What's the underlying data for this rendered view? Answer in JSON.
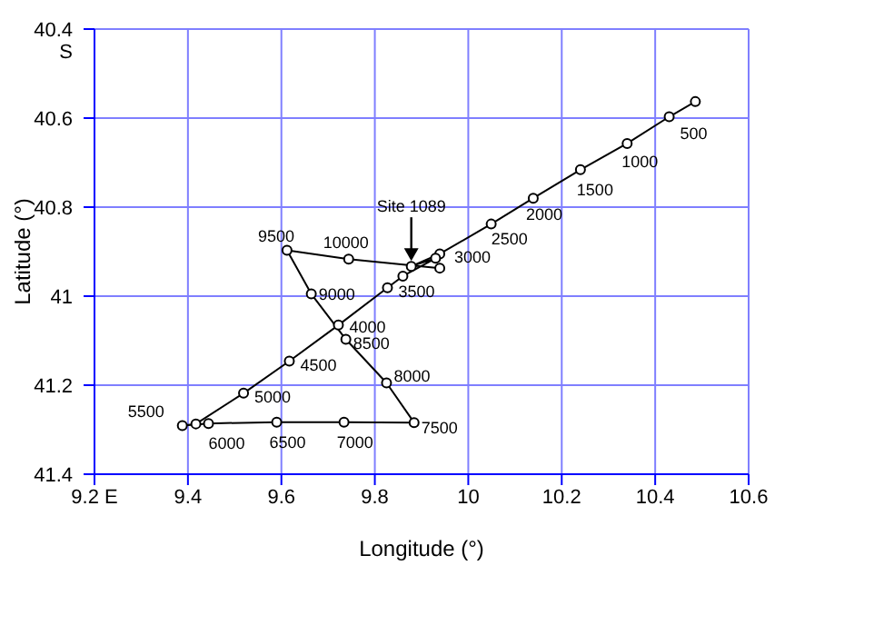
{
  "chart_data": {
    "type": "line",
    "xlabel": "Longitude (°)",
    "ylabel": "Latitude (°)",
    "xlim": [
      9.2,
      10.6
    ],
    "xticks": [
      {
        "value": 9.2,
        "label": "9.2 E"
      },
      9.4,
      9.6,
      9.8,
      10,
      10.2,
      10.4,
      10.6
    ],
    "ylim": [
      41.4,
      40.4
    ],
    "yticks": [
      {
        "value": 40.4,
        "label": "40.4 S"
      },
      40.6,
      40.8,
      41.0,
      41.2,
      41.4
    ],
    "grid": true,
    "marker": "circle",
    "line_style": "solid",
    "series": [
      {
        "color": "#000000",
        "x": [
          10.486,
          10.43,
          10.34,
          10.24,
          10.139,
          10.049,
          9.939,
          9.878,
          9.93,
          9.86,
          9.827,
          9.722,
          9.617,
          9.519,
          9.417,
          9.388,
          9.444,
          9.59,
          9.734,
          9.884,
          9.825,
          9.738,
          9.664,
          9.612,
          9.744,
          9.939
        ],
        "values": [
          40.563,
          40.597,
          40.657,
          40.716,
          40.78,
          40.838,
          40.905,
          40.933,
          40.915,
          40.955,
          40.981,
          41.065,
          41.146,
          41.218,
          41.287,
          41.291,
          41.286,
          41.283,
          41.283,
          41.284,
          41.195,
          41.097,
          40.995,
          40.897,
          40.917,
          40.937
        ]
      }
    ],
    "annotations": [
      {
        "text": "500",
        "x": 10.43,
        "y": 40.597
      },
      {
        "text": "1000",
        "x": 10.34,
        "y": 40.657
      },
      {
        "text": "1500",
        "x": 10.24,
        "y": 40.716
      },
      {
        "text": "2000",
        "x": 10.139,
        "y": 40.78
      },
      {
        "text": "2500",
        "x": 10.049,
        "y": 40.838
      },
      {
        "text": "3000",
        "x": 9.939,
        "y": 40.905
      },
      {
        "text": "3500",
        "x": 9.827,
        "y": 40.981
      },
      {
        "text": "4000",
        "x": 9.722,
        "y": 41.065
      },
      {
        "text": "4500",
        "x": 9.617,
        "y": 41.146
      },
      {
        "text": "5000",
        "x": 9.519,
        "y": 41.218
      },
      {
        "text": "5500",
        "x": 9.388,
        "y": 41.291
      },
      {
        "text": "6000",
        "x": 9.444,
        "y": 41.286
      },
      {
        "text": "6500",
        "x": 9.59,
        "y": 41.283
      },
      {
        "text": "7000",
        "x": 9.734,
        "y": 41.283
      },
      {
        "text": "7500",
        "x": 9.884,
        "y": 41.284
      },
      {
        "text": "8000",
        "x": 9.825,
        "y": 41.195
      },
      {
        "text": "8500",
        "x": 9.738,
        "y": 41.097
      },
      {
        "text": "9000",
        "x": 9.664,
        "y": 40.995
      },
      {
        "text": "9500",
        "x": 9.612,
        "y": 40.897
      },
      {
        "text": "10000",
        "x": 9.744,
        "y": 40.917
      },
      {
        "text": "Site 1089",
        "x": 9.878,
        "y": 40.933
      }
    ]
  }
}
